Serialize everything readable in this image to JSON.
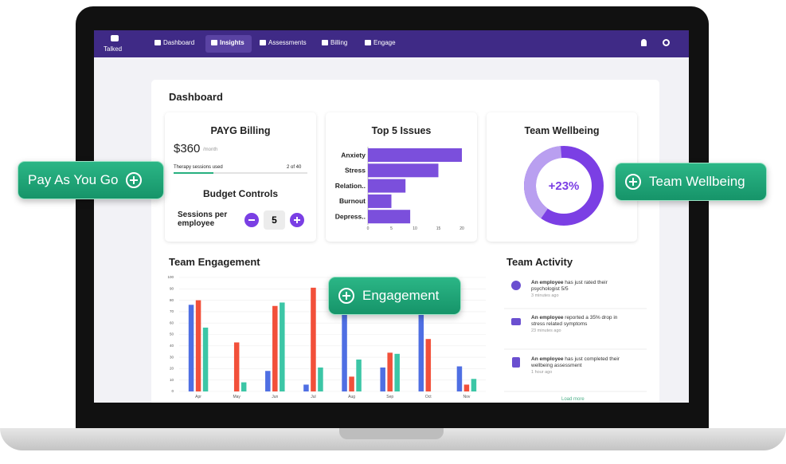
{
  "nav": {
    "logo": "Talked",
    "items": [
      "Dashboard",
      "Insights",
      "Assessments",
      "Billing",
      "Engage"
    ]
  },
  "dashboard": {
    "title": "Dashboard",
    "payg": {
      "title": "PAYG Billing",
      "price": "$360",
      "period": "/month",
      "sessions_label": "Therapy sessions used",
      "sessions_value": "2 of 40",
      "budget_title": "Budget Controls",
      "sessions_per_employee_label": [
        "Sessions per",
        "employee"
      ],
      "sessions_per_employee": 5
    },
    "top_issues": {
      "type": "bar",
      "orientation": "horizontal",
      "title": "Top 5 Issues",
      "categories": [
        "Anxiety",
        "Stress",
        "Relation..",
        "Burnout",
        "Depress.."
      ],
      "values": [
        20,
        15,
        8,
        5,
        9
      ],
      "color": "#7b4fdc",
      "xlim": [
        0,
        20
      ],
      "xticks": [
        0,
        5,
        10,
        15,
        20
      ]
    },
    "wellbeing": {
      "title": "Team Wellbeing",
      "change": "+23%"
    },
    "engagement": {
      "type": "bar",
      "title": "Team Engagement",
      "categories": [
        "Apr",
        "May",
        "Jun",
        "Jul",
        "Aug",
        "Sep",
        "Oct",
        "Nov"
      ],
      "series": [
        {
          "color": "#4f6fe3",
          "values": [
            76,
            null,
            18,
            6,
            88,
            21,
            90,
            22
          ]
        },
        {
          "color": "#f2503a",
          "values": [
            80,
            43,
            75,
            91,
            13,
            34,
            46,
            6
          ]
        },
        {
          "color": "#3cc6a6",
          "values": [
            56,
            8,
            78,
            21,
            28,
            33,
            null,
            11
          ]
        }
      ],
      "ylim": [
        0,
        100
      ],
      "yticks": [
        0,
        10,
        20,
        30,
        40,
        50,
        60,
        70,
        80,
        90,
        100
      ],
      "grid": true
    },
    "activity": {
      "title": "Team Activity",
      "items": [
        {
          "actor": "An employee",
          "text": "has just rated their psychologist 5/5",
          "time": "3 minutes ago"
        },
        {
          "actor": "An employee",
          "text": "reported a 35% drop in stress related symptoms",
          "time": "23 minutes ago"
        },
        {
          "actor": "An employee",
          "text": "has just completed their wellbeing assessment",
          "time": "1 hour ago"
        }
      ],
      "load_more": "Load more"
    }
  },
  "callouts": [
    "Pay As You Go",
    "Team Wellbeing",
    "Engagement"
  ]
}
